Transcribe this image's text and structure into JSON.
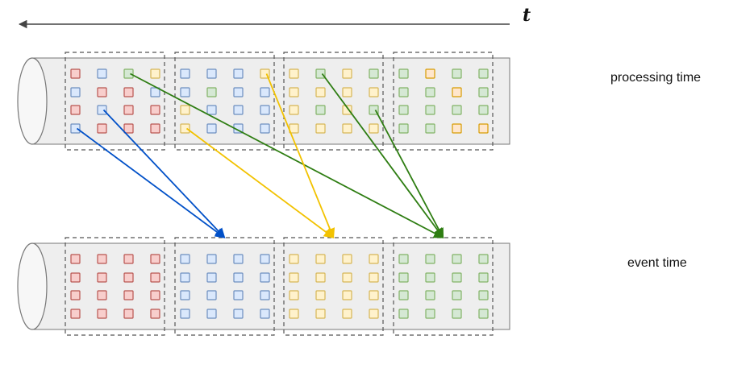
{
  "labels": {
    "time_symbol": "t",
    "top_row": "processing time",
    "bottom_row": "event time"
  },
  "colors": {
    "red_fill": "#f8cecc",
    "red_stroke": "#b85450",
    "blue_fill": "#dae8fc",
    "blue_stroke": "#6c8ebf",
    "green_fill": "#d5e8d4",
    "green_stroke": "#82b366",
    "yellow_fill": "#fff2cc",
    "yellow_stroke": "#d6b656",
    "orange_fill": "#ffe6cc",
    "orange_stroke": "#d79b00",
    "arrow_blue": "#0050c8",
    "arrow_yellow": "#f2c200",
    "arrow_green": "#2e7d12",
    "pipe_fill": "#eeeeee",
    "pipe_stroke": "#777777",
    "timeline": "#444444"
  },
  "processing_time_windows": [
    [
      [
        "red",
        "blue",
        "green",
        "yellow"
      ],
      [
        "blue",
        "red",
        "red",
        "blue"
      ],
      [
        "red",
        "blue",
        "red",
        "red"
      ],
      [
        "blue",
        "red",
        "red",
        "red"
      ]
    ],
    [
      [
        "blue",
        "blue",
        "blue",
        "yellow"
      ],
      [
        "blue",
        "green",
        "blue",
        "blue"
      ],
      [
        "yellow",
        "blue",
        "blue",
        "blue"
      ],
      [
        "yellow",
        "blue",
        "blue",
        "blue"
      ]
    ],
    [
      [
        "yellow",
        "green",
        "yellow",
        "green"
      ],
      [
        "yellow",
        "yellow",
        "yellow",
        "yellow"
      ],
      [
        "yellow",
        "green",
        "yellow",
        "green"
      ],
      [
        "yellow",
        "yellow",
        "yellow",
        "yellow"
      ]
    ],
    [
      [
        "green",
        "orange",
        "green",
        "green"
      ],
      [
        "green",
        "green",
        "orange",
        "green"
      ],
      [
        "green",
        "green",
        "green",
        "green"
      ],
      [
        "green",
        "green",
        "orange",
        "orange"
      ]
    ]
  ],
  "event_time_windows": [
    "red",
    "blue",
    "yellow",
    "green"
  ],
  "moves": [
    {
      "color": "blue",
      "from_window": 0,
      "from_cell": [
        3,
        0
      ],
      "to_window": 1
    },
    {
      "color": "blue",
      "from_window": 0,
      "from_cell": [
        2,
        1
      ],
      "to_window": 1
    },
    {
      "color": "green",
      "from_window": 0,
      "from_cell": [
        0,
        2
      ],
      "to_window": 3
    },
    {
      "color": "yellow",
      "from_window": 1,
      "from_cell": [
        3,
        0
      ],
      "to_window": 2
    },
    {
      "color": "yellow",
      "from_window": 1,
      "from_cell": [
        0,
        3
      ],
      "to_window": 2
    },
    {
      "color": "green",
      "from_window": 2,
      "from_cell": [
        0,
        1
      ],
      "to_window": 3
    },
    {
      "color": "green",
      "from_window": 2,
      "from_cell": [
        2,
        3
      ],
      "to_window": 3
    }
  ]
}
